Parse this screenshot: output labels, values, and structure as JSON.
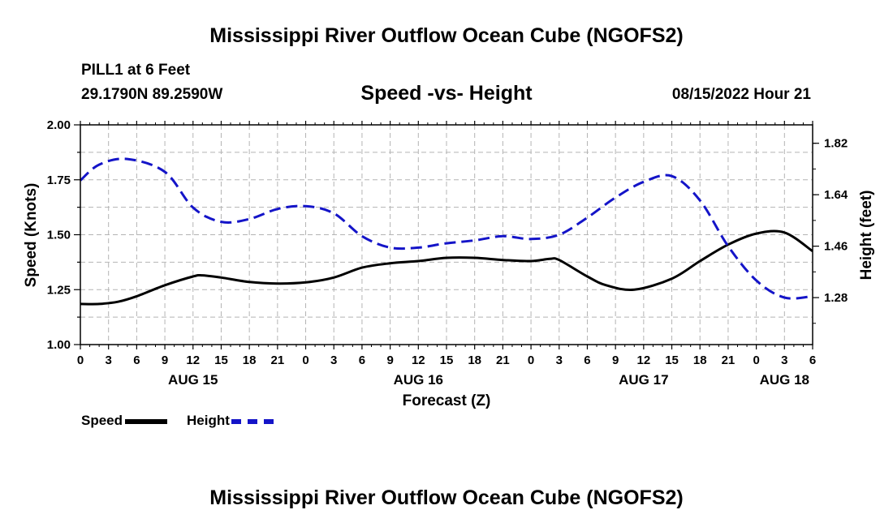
{
  "main_title": "Mississippi River Outflow Ocean Cube (NGOFS2)",
  "bottom_title": "Mississippi River Outflow Ocean Cube (NGOFS2)",
  "station": {
    "name": "PILL1 at 6 Feet",
    "coords": "29.1790N  89.2590W"
  },
  "subtitle": "Speed -vs- Height",
  "datetime": "08/15/2022 Hour 21",
  "legend": {
    "speed_label": "Speed",
    "height_label": "Height"
  },
  "colors": {
    "speed": "#000000",
    "height": "#1414c8",
    "grid": "#b4b4b4"
  },
  "chart_data": {
    "type": "line",
    "title": "Speed -vs- Height",
    "xlabel": "Forecast (Z)",
    "ylabel": "Speed (Knots)",
    "y2label": "Height (feet)",
    "xlim_hours": [
      0,
      78
    ],
    "ylim": [
      1.0,
      2.0
    ],
    "y2lim": [
      1.1156,
      1.8844
    ],
    "yticks": [
      "1.00",
      "1.25",
      "1.50",
      "1.75",
      "2.00"
    ],
    "y2ticks": [
      "1.28",
      "1.46",
      "1.64",
      "1.82"
    ],
    "xtick_labels": [
      "0",
      "3",
      "6",
      "9",
      "12",
      "15",
      "18",
      "21",
      "0",
      "3",
      "6",
      "9",
      "12",
      "15",
      "18",
      "21",
      "0",
      "3",
      "6",
      "9",
      "12",
      "15",
      "18",
      "21",
      "0",
      "3",
      "6"
    ],
    "date_labels": [
      {
        "label": "AUG 15",
        "hour": 12
      },
      {
        "label": "AUG 16",
        "hour": 36
      },
      {
        "label": "AUG 17",
        "hour": 60
      },
      {
        "label": "AUG 18",
        "hour": 75
      }
    ],
    "grid": true,
    "series": [
      {
        "name": "Speed",
        "axis": "left",
        "style": "solid",
        "x": [
          0,
          2,
          4,
          6,
          9,
          12,
          13,
          15,
          18,
          21,
          24,
          27,
          30,
          33,
          36,
          39,
          42,
          45,
          48,
          50,
          51,
          54,
          56,
          59,
          63,
          66,
          69,
          72,
          75,
          78
        ],
        "values": [
          1.185,
          1.185,
          1.195,
          1.22,
          1.27,
          1.31,
          1.315,
          1.305,
          1.285,
          1.278,
          1.283,
          1.305,
          1.35,
          1.37,
          1.38,
          1.395,
          1.395,
          1.385,
          1.38,
          1.39,
          1.385,
          1.31,
          1.27,
          1.25,
          1.3,
          1.38,
          1.455,
          1.505,
          1.51,
          1.425
        ]
      },
      {
        "name": "Height",
        "axis": "right",
        "style": "dashed",
        "x": [
          0,
          2,
          5,
          9,
          12,
          15,
          18,
          21,
          24,
          27,
          30,
          33,
          36,
          39,
          42,
          45,
          48,
          51,
          54,
          57,
          60,
          63,
          66,
          69,
          72,
          75,
          78
        ],
        "values": [
          1.69,
          1.745,
          1.765,
          1.72,
          1.595,
          1.545,
          1.555,
          1.59,
          1.6,
          1.575,
          1.495,
          1.455,
          1.455,
          1.47,
          1.48,
          1.495,
          1.485,
          1.5,
          1.56,
          1.63,
          1.685,
          1.705,
          1.62,
          1.46,
          1.34,
          1.28,
          1.285
        ]
      }
    ]
  }
}
